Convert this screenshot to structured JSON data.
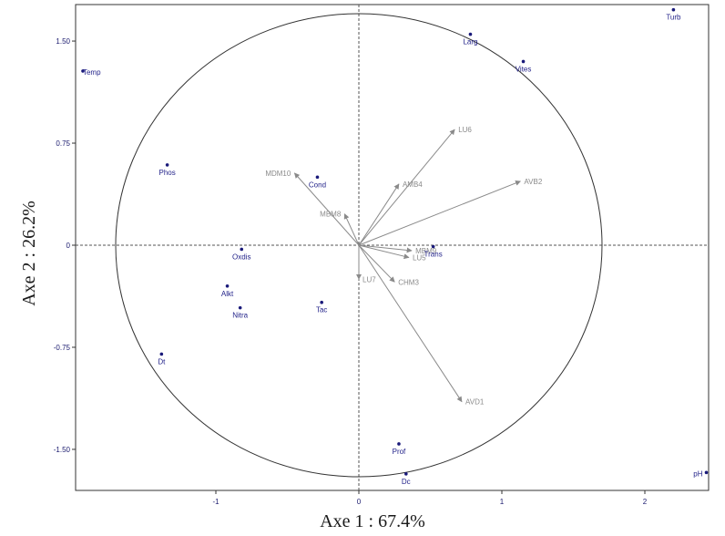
{
  "chart_data": {
    "type": "scatter",
    "title": "",
    "xlabel": "Axe 1 : 67.4%",
    "ylabel": "Axe 2 : 26.2%",
    "xlim": [
      -1.95,
      2.45
    ],
    "ylim": [
      -1.8,
      1.75
    ],
    "grid": false,
    "circle_radius": 1.7,
    "x_ticks": [
      {
        "value": -1,
        "label": "-1"
      },
      {
        "value": 0,
        "label": "0"
      },
      {
        "value": 1,
        "label": "1"
      },
      {
        "value": 2,
        "label": "2"
      }
    ],
    "y_ticks": [
      {
        "value": 1.5,
        "label": "1.50"
      },
      {
        "value": 0.75,
        "label": "0.75"
      },
      {
        "value": 0,
        "label": "0"
      },
      {
        "value": -0.75,
        "label": "-0.75"
      },
      {
        "value": -1.5,
        "label": "-1.50"
      }
    ],
    "points": [
      {
        "label": "Turb",
        "x": 2.2,
        "y": 1.73
      },
      {
        "label": "Larg",
        "x": 0.78,
        "y": 1.55
      },
      {
        "label": "Vites",
        "x": 1.15,
        "y": 1.35
      },
      {
        "label": "Temp",
        "x": -1.93,
        "y": 1.28
      },
      {
        "label": "Phos",
        "x": -1.34,
        "y": 0.59
      },
      {
        "label": "Cond",
        "x": -0.29,
        "y": 0.5
      },
      {
        "label": "Trans",
        "x": 0.52,
        "y": -0.01
      },
      {
        "label": "Oxdis",
        "x": -0.82,
        "y": -0.03
      },
      {
        "label": "Alkt",
        "x": -0.92,
        "y": -0.3
      },
      {
        "label": "Nitra",
        "x": -0.83,
        "y": -0.46
      },
      {
        "label": "Tac",
        "x": -0.26,
        "y": -0.42
      },
      {
        "label": "Dt",
        "x": -1.38,
        "y": -0.8
      },
      {
        "label": "Prof",
        "x": 0.28,
        "y": -1.46
      },
      {
        "label": "Dc",
        "x": 0.33,
        "y": -1.68
      },
      {
        "label": "pH",
        "x": 2.43,
        "y": -1.67
      }
    ],
    "vectors": [
      {
        "label": "LU6",
        "x": 0.67,
        "y": 0.85
      },
      {
        "label": "AVB2",
        "x": 1.13,
        "y": 0.47
      },
      {
        "label": "AMB4",
        "x": 0.28,
        "y": 0.45
      },
      {
        "label": "MDM10",
        "x": -0.45,
        "y": 0.53
      },
      {
        "label": "MBM8",
        "x": -0.1,
        "y": 0.23
      },
      {
        "label": "MBM9",
        "x": 0.37,
        "y": -0.04
      },
      {
        "label": "LU5",
        "x": 0.35,
        "y": -0.09
      },
      {
        "label": "CHM3",
        "x": 0.25,
        "y": -0.27
      },
      {
        "label": "LU7",
        "x": 0.0,
        "y": -0.25
      },
      {
        "label": "AVD1",
        "x": 0.72,
        "y": -1.15
      }
    ]
  }
}
